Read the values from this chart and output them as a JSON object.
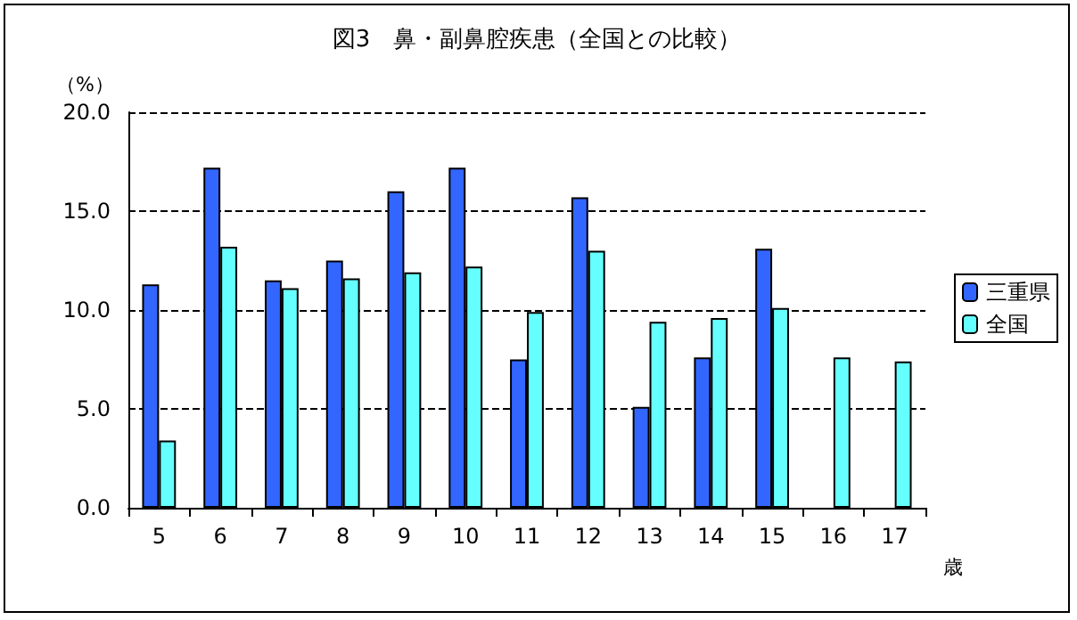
{
  "chart_data": {
    "type": "bar",
    "title": "図3　鼻・副鼻腔疾患（全国との比較）",
    "ylabel": "（%）",
    "xlabel": "歳",
    "categories": [
      "5",
      "6",
      "7",
      "8",
      "9",
      "10",
      "11",
      "12",
      "13",
      "14",
      "15",
      "16",
      "17"
    ],
    "series": [
      {
        "name": "三重県",
        "color": "#3366ff",
        "values": [
          11.3,
          17.2,
          11.5,
          12.5,
          16.0,
          17.2,
          7.5,
          15.7,
          5.1,
          7.6,
          13.1,
          null,
          null
        ]
      },
      {
        "name": "全国",
        "color": "#66ffff",
        "values": [
          3.4,
          13.2,
          11.1,
          11.6,
          11.9,
          12.2,
          9.9,
          13.0,
          9.4,
          9.6,
          10.1,
          7.6,
          7.4
        ]
      }
    ],
    "ylim": [
      0,
      20
    ],
    "yticks": [
      {
        "value": 0,
        "label": "0.0"
      },
      {
        "value": 5,
        "label": "5.0"
      },
      {
        "value": 10,
        "label": "10.0"
      },
      {
        "value": 15,
        "label": "15.0"
      },
      {
        "value": 20,
        "label": "20.0"
      }
    ],
    "grid": "y",
    "legend": "right"
  }
}
